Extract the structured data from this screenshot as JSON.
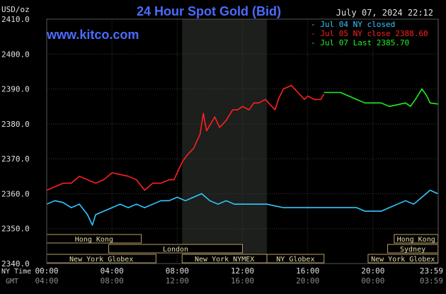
{
  "chart_data": {
    "type": "line",
    "title": "24 Hour Spot Gold (Bid)",
    "unit_label": "USD/oz",
    "brand": "www.kitco.com",
    "timestamp": "July 07, 2024 22:12",
    "ylim": [
      2340,
      2410
    ],
    "y_ticks": [
      "2410.0",
      "2400.0",
      "2390.0",
      "2380.0",
      "2370.0",
      "2360.0",
      "2350.0",
      "2340.0"
    ],
    "ny_time_label": "NY Time",
    "gmt_label": "GMT",
    "x_ticks_ny": [
      "00:00",
      "04:00",
      "08:00",
      "12:00",
      "16:00",
      "20:00",
      "23:59"
    ],
    "x_ticks_gmt": [
      "04:00",
      "08:00",
      "12:00",
      "16:00",
      "20:00",
      "00:00",
      "03:59"
    ],
    "series": [
      {
        "name": "Jul 04 NY closed",
        "color": "#33c8ff",
        "x": [
          0,
          0.5,
          1,
          1.5,
          2,
          2.5,
          2.8,
          3,
          3.5,
          4,
          4.5,
          5,
          5.5,
          6,
          6.5,
          7,
          7.5,
          8,
          8.5,
          9,
          9.5,
          10,
          10.5,
          11,
          11.5,
          12,
          12.5,
          13,
          13.5,
          14,
          14.5,
          15,
          15.5,
          16,
          16.5,
          17,
          17.5,
          18,
          18.5,
          19,
          19.5,
          20,
          20.5,
          21,
          21.5,
          22,
          22.5,
          23,
          23.5,
          23.98
        ],
        "values": [
          2357,
          2358,
          2357.5,
          2356,
          2357,
          2354,
          2351,
          2354,
          2355,
          2356,
          2357,
          2356,
          2357,
          2356,
          2357,
          2358,
          2358,
          2359,
          2358,
          2359,
          2360,
          2358,
          2357,
          2358,
          2357,
          2357,
          2357,
          2357,
          2357,
          2356.5,
          2356,
          2356,
          2356,
          2356,
          2356,
          2356,
          2356,
          2356,
          2356,
          2356,
          2355,
          2355,
          2355,
          2356,
          2357,
          2358,
          2357,
          2359,
          2361,
          2360
        ]
      },
      {
        "name": "Jul 05 NY close 2388.60",
        "color": "#ff2020",
        "x": [
          0,
          0.5,
          1,
          1.5,
          2,
          2.5,
          3,
          3.5,
          4,
          4.5,
          5,
          5.5,
          6,
          6.5,
          7,
          7.5,
          7.8,
          8,
          8.3,
          8.6,
          9,
          9.4,
          9.6,
          9.8,
          10.3,
          10.6,
          11,
          11.4,
          11.7,
          12,
          12.4,
          12.7,
          13,
          13.4,
          13.8,
          14,
          14.2,
          14.5,
          15,
          15.4,
          15.8,
          16,
          16.4,
          16.8,
          17
        ],
        "values": [
          2361,
          2362,
          2363,
          2363,
          2365,
          2364,
          2363,
          2364,
          2366,
          2365.5,
          2365,
          2364,
          2361,
          2363,
          2363,
          2364,
          2364,
          2366,
          2369,
          2371,
          2373,
          2377,
          2383,
          2378,
          2382,
          2379,
          2381,
          2384,
          2384,
          2385,
          2384,
          2386,
          2386,
          2387,
          2385,
          2384,
          2387,
          2390,
          2391,
          2389,
          2387,
          2388,
          2387,
          2387,
          2388.6
        ]
      },
      {
        "name": "Jul 07 Last 2385.70",
        "color": "#22ee22",
        "x": [
          17,
          17.5,
          18,
          18.5,
          19,
          19.5,
          20,
          20.5,
          21,
          21.5,
          22,
          22.3,
          22.6,
          23,
          23.3,
          23.5,
          23.98
        ],
        "values": [
          2389,
          2389,
          2389,
          2388,
          2387,
          2386,
          2386,
          2386,
          2385,
          2385.5,
          2386,
          2385,
          2387,
          2390,
          2388,
          2386,
          2385.7
        ]
      }
    ],
    "sessions": [
      {
        "label": "Hong Kong",
        "start": 0,
        "end": 5.8,
        "row": 0
      },
      {
        "label": "Hong Kong",
        "start": 21.3,
        "end": 23.98,
        "row": 0
      },
      {
        "label": "Sydney",
        "start": 20.9,
        "end": 23.98,
        "row": 1
      },
      {
        "label": "London",
        "start": 3.8,
        "end": 12.0,
        "row": 1
      },
      {
        "label": "New York Globex",
        "start": 0,
        "end": 6.7,
        "row": 2
      },
      {
        "label": "New York Globex",
        "start": 19.7,
        "end": 23.98,
        "row": 2
      },
      {
        "label": "New York NYMEX",
        "start": 8.3,
        "end": 13.5,
        "row": 2
      },
      {
        "label": "NY Globex",
        "start": 13.5,
        "end": 17.0,
        "row": 2
      }
    ],
    "highlight": {
      "start": 8.3,
      "end": 13.5
    },
    "grid": true,
    "legend_position": "top-right"
  }
}
